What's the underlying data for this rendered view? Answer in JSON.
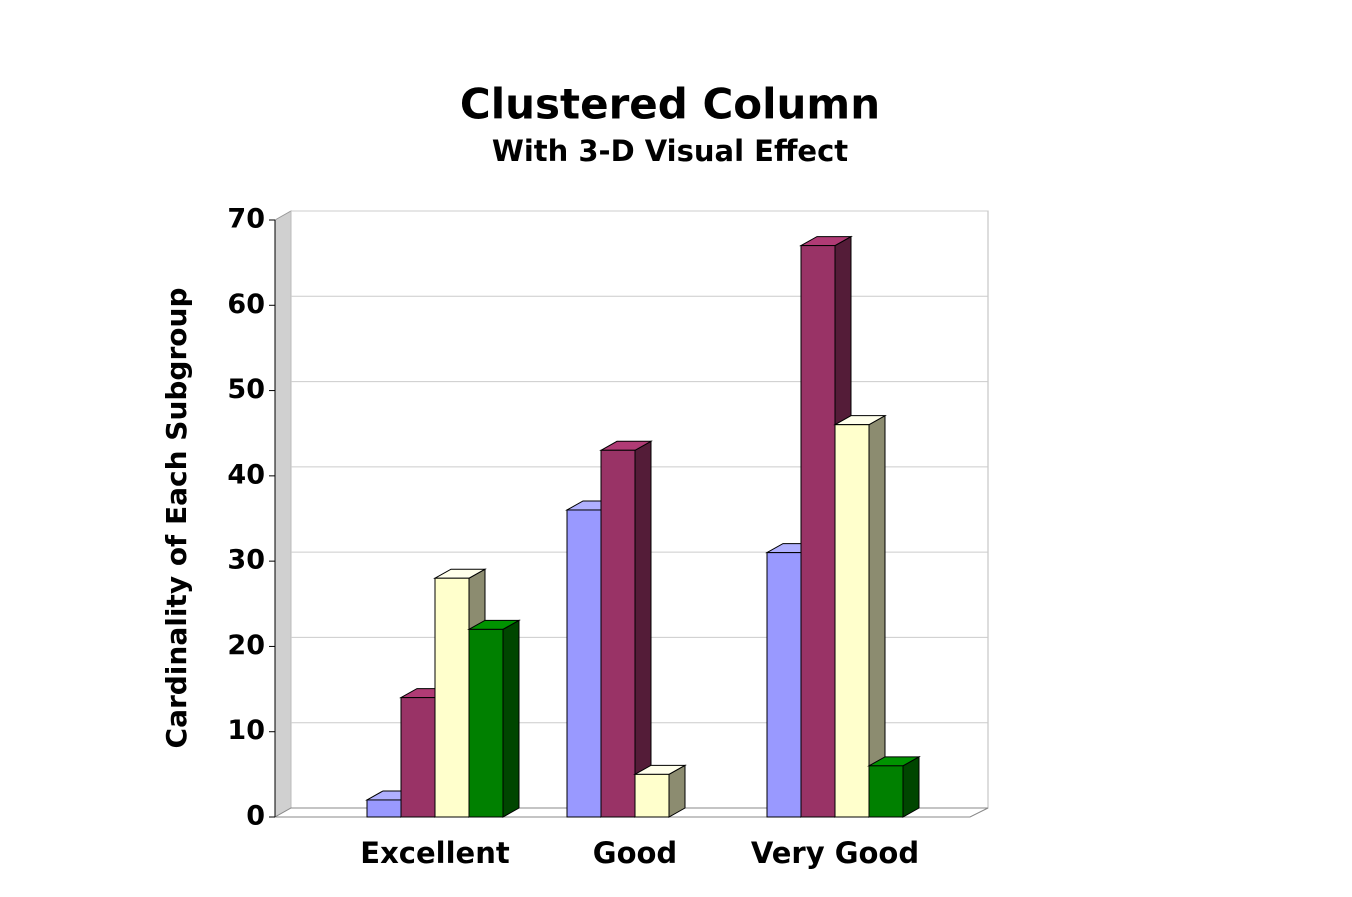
{
  "chart_data": {
    "type": "bar3d",
    "title": "Clustered Column",
    "subtitle": "With 3-D Visual Effect",
    "y_label": "Cardinality of Each Subgroup",
    "categories": [
      "Excellent",
      "Good",
      "Very Good"
    ],
    "series": [
      {
        "color": "#9999ff",
        "values": [
          2,
          36,
          31
        ]
      },
      {
        "color": "#993366",
        "values": [
          14,
          43,
          67
        ]
      },
      {
        "color": "#ffffcc",
        "values": [
          28,
          5,
          46
        ]
      },
      {
        "color": "#008000",
        "values": [
          22,
          null,
          6
        ]
      }
    ],
    "ylim": [
      0,
      70
    ],
    "yticks": [
      0,
      10,
      20,
      30,
      40,
      50,
      60,
      70
    ],
    "grid": true
  }
}
